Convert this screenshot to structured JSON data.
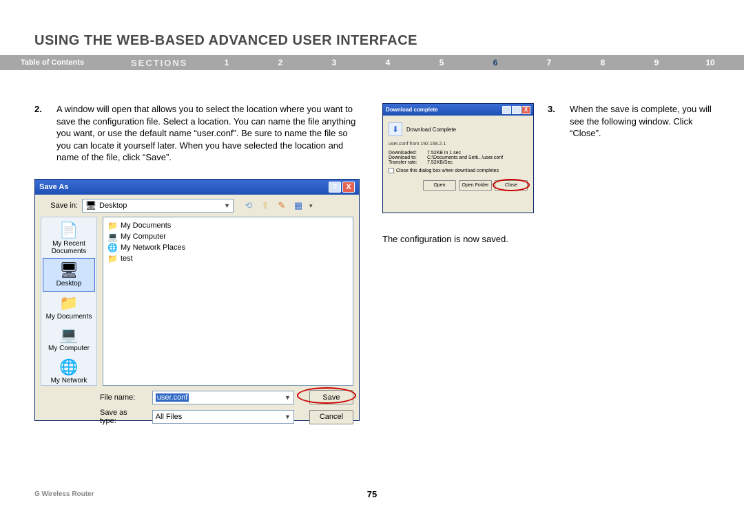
{
  "page": {
    "title": "USING THE WEB-BASED ADVANCED USER INTERFACE",
    "footer_product": "G Wireless Router",
    "page_number": "75"
  },
  "nav": {
    "toc": "Table of Contents",
    "sections_label": "SECTIONS",
    "items": [
      "1",
      "2",
      "3",
      "4",
      "5",
      "6",
      "7",
      "8",
      "9",
      "10"
    ],
    "active_index": 5,
    "bg_color": "#a7a7a7",
    "active_color": "#1b3f6e"
  },
  "step2": {
    "num": "2.",
    "text": "A window will open that allows you to select the location where you want to save the configuration file. Select a location. You can name the file anything you want, or use the default name “user.conf”. Be sure to name the file so you can locate it yourself later. When you have selected the location and name of the file, click “Save”."
  },
  "step3": {
    "num": "3.",
    "text": "When the save is complete, you will see the following window. Click “Close”."
  },
  "config_saved_text": "The configuration is now saved.",
  "save_as": {
    "title": "Save As",
    "help_glyph": "?",
    "close_glyph": "X",
    "save_in_label": "Save in:",
    "save_in_value": "Desktop",
    "toolbar_icons": {
      "back": "⟲",
      "up": "⇧",
      "new": "✎",
      "views": "▦"
    },
    "places": [
      {
        "icon": "📄",
        "label": "My Recent Documents",
        "selected": false
      },
      {
        "icon": "🖥",
        "label": "Desktop",
        "selected": true
      },
      {
        "icon": "📁",
        "label": "My Documents",
        "selected": false
      },
      {
        "icon": "💻",
        "label": "My Computer",
        "selected": false
      },
      {
        "icon": "🌐",
        "label": "My Network",
        "selected": false
      }
    ],
    "list_items": [
      {
        "icon": "📁",
        "label": "My Documents"
      },
      {
        "icon": "💻",
        "label": "My Computer"
      },
      {
        "icon": "🌐",
        "label": "My Network Places"
      },
      {
        "icon": "📁",
        "label": "test"
      }
    ],
    "file_name_label": "File name:",
    "file_name_value": "user.conf",
    "save_type_label": "Save as type:",
    "save_type_value": "All Files",
    "save_btn": "Save",
    "cancel_btn": "Cancel",
    "colors": {
      "titlebar_top": "#3a6ed5",
      "titlebar_bottom": "#1e4fb5",
      "body": "#ece9d8",
      "border": "#0a246a",
      "field_border": "#7f9db9",
      "highlight": "#316ac5",
      "places_bg": "#eef3fa"
    }
  },
  "download": {
    "title": "Download complete",
    "min_glyph": "_",
    "max_glyph": "□",
    "close_glyph": "X",
    "head_text": "Download Complete",
    "sub_text": "user.conf from 192.168.2.1",
    "rows": [
      {
        "k": "Downloaded:",
        "v": "7.52KB in 1 sec"
      },
      {
        "k": "Download to:",
        "v": "C:\\Documents and Setti...\\user.conf"
      },
      {
        "k": "Transfer rate:",
        "v": "7.52KB/Sec"
      }
    ],
    "checkbox_label": "Close this dialog box when download completes",
    "open_btn": "Open",
    "open_folder_btn": "Open Folder",
    "close_btn": "Close"
  }
}
